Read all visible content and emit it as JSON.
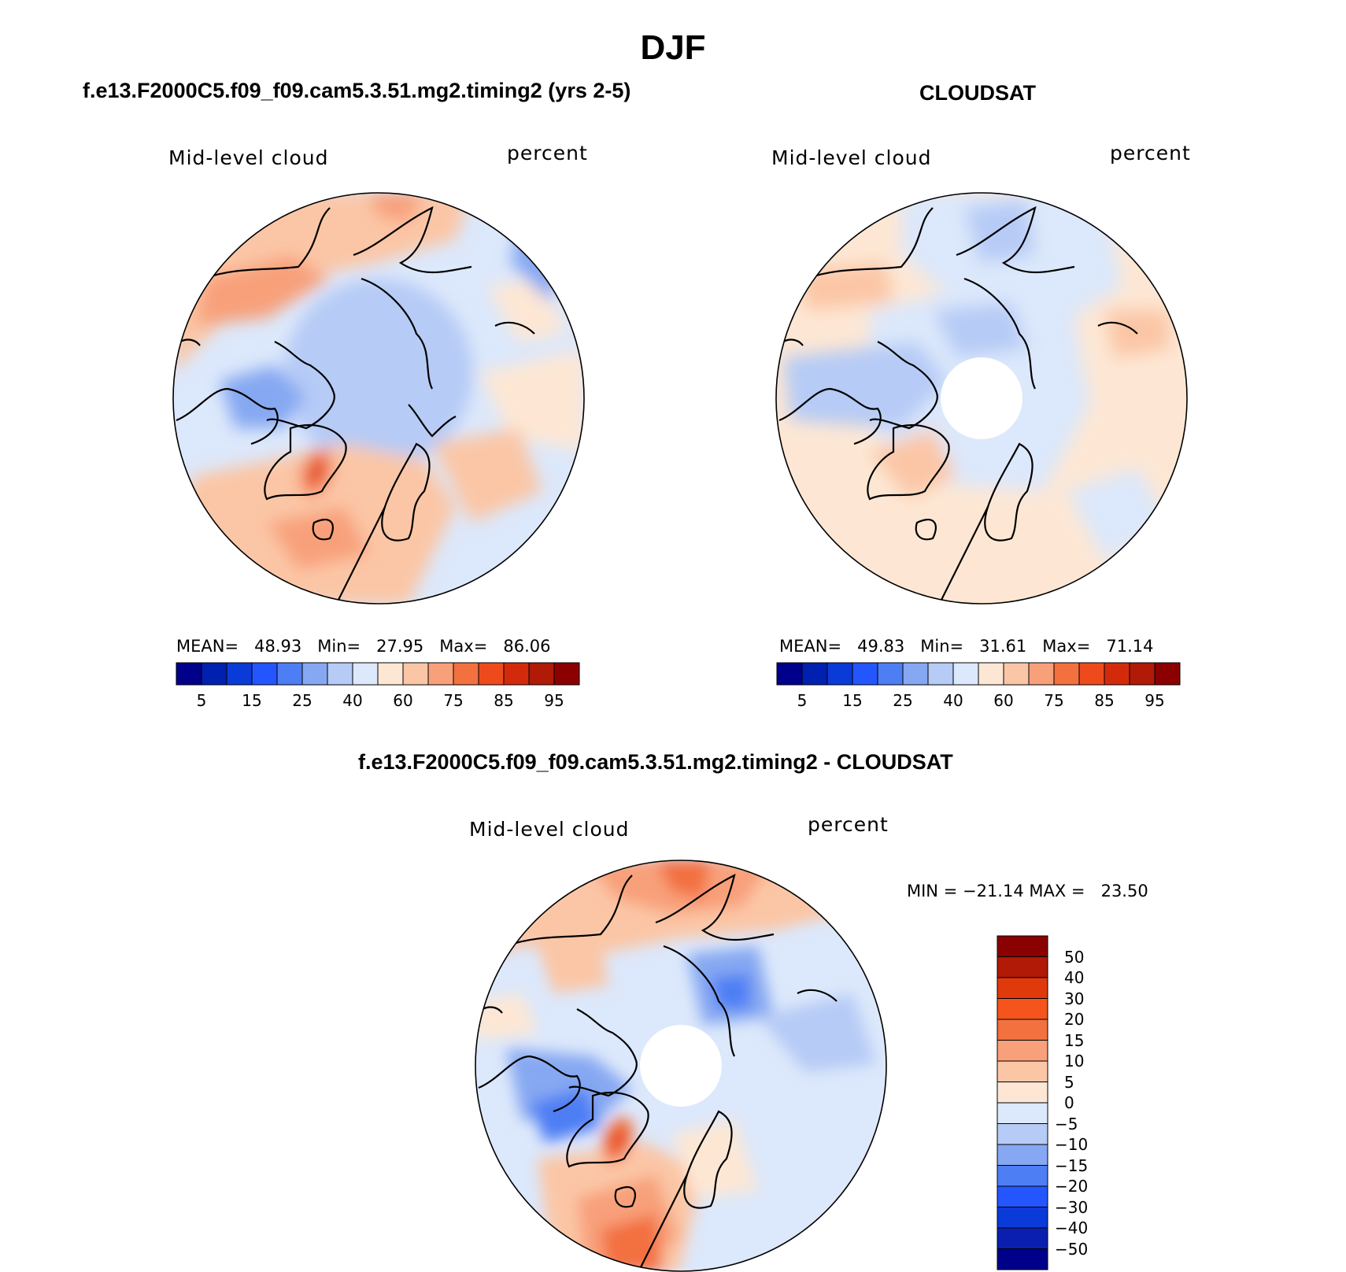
{
  "figure": {
    "title": "DJF",
    "panel_a_title": "f.e13.F2000C5.f09_f09.cam5.3.51.mg2.timing2 (yrs 2-5)",
    "panel_b_title": "CLOUDSAT",
    "diff_title": "f.e13.F2000C5.f09_f09.cam5.3.51.mg2.timing2 - CLOUDSAT"
  },
  "colors": {
    "abs_palette": [
      "#00008b",
      "#0020b0",
      "#0a3ad8",
      "#2456ff",
      "#4e7ef4",
      "#86a8f2",
      "#b6cbf6",
      "#dce8fb",
      "#fde7d4",
      "#fbc6a6",
      "#f8a07a",
      "#f3703f",
      "#ee4a1c",
      "#d42a0c",
      "#b01a06",
      "#8b0000"
    ],
    "diff_palette": [
      "#00008b",
      "#0a1fb0",
      "#0a3ad8",
      "#2456ff",
      "#4e7ef4",
      "#86a8f2",
      "#b6cbf6",
      "#dce8fb",
      "#fde7d4",
      "#fbc6a6",
      "#f8a07a",
      "#f3703f",
      "#f5541c",
      "#e03a0c",
      "#b01a06",
      "#8b0000"
    ]
  },
  "chart_data": [
    {
      "type": "heatmap",
      "projection": "north-polar-stereographic",
      "title": "f.e13.F2000C5.f09_f09.cam5.3.51.mg2.timing2 (yrs 2-5)",
      "left_label": "Mid-level cloud",
      "right_label": "percent",
      "stats": {
        "mean_label": "MEAN=",
        "mean": "48.93",
        "min_label": "Min=",
        "min": "27.95",
        "max_label": "Max=",
        "max": "86.06"
      },
      "colorbar": {
        "orientation": "horizontal",
        "levels": [
          "5",
          "15",
          "25",
          "40",
          "60",
          "75",
          "85",
          "95"
        ]
      }
    },
    {
      "type": "heatmap",
      "projection": "north-polar-stereographic",
      "title": "CLOUDSAT",
      "left_label": "Mid-level cloud",
      "right_label": "percent",
      "stats": {
        "mean_label": "MEAN=",
        "mean": "49.83",
        "min_label": "Min=",
        "min": "31.61",
        "max_label": "Max=",
        "max": "71.14"
      },
      "colorbar": {
        "orientation": "horizontal",
        "levels": [
          "5",
          "15",
          "25",
          "40",
          "60",
          "75",
          "85",
          "95"
        ]
      }
    },
    {
      "type": "heatmap",
      "projection": "north-polar-stereographic",
      "title": "f.e13.F2000C5.f09_f09.cam5.3.51.mg2.timing2 - CLOUDSAT",
      "left_label": "Mid-level cloud",
      "right_label": "percent",
      "stats": {
        "min_label": "MIN =",
        "min": "−21.14",
        "max_label": "MAX =",
        "max": "23.50"
      },
      "colorbar": {
        "orientation": "vertical",
        "levels": [
          "50",
          "40",
          "30",
          "20",
          "15",
          "10",
          "5",
          "0",
          "−5",
          "−10",
          "−15",
          "−20",
          "−30",
          "−40",
          "−50"
        ]
      }
    }
  ]
}
